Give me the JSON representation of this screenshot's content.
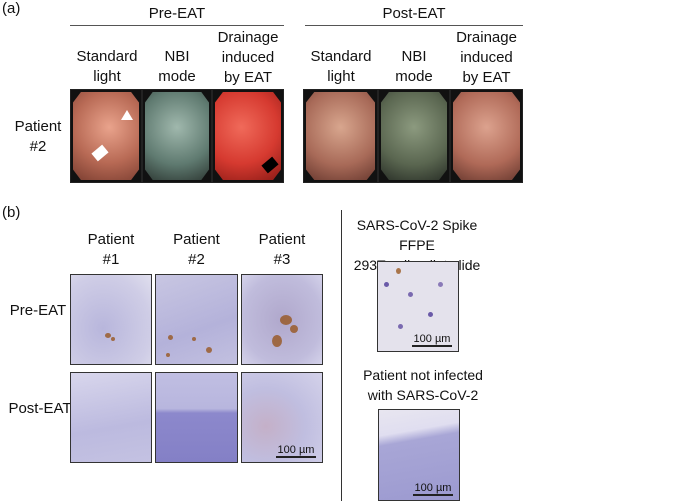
{
  "panel_a": {
    "label": "(a)",
    "group_pre": "Pre-EAT",
    "group_post": "Post-EAT",
    "columns": [
      "Standard light\nmode",
      "NBI\nmode",
      "Drainage\ninduced\nby EAT"
    ],
    "row_label": "Patient\n#2",
    "image_colors": {
      "standard": "#b86a55",
      "nbi": "#5f7a70",
      "drainage": "#d63a30"
    }
  },
  "panel_b": {
    "label": "(b)",
    "columns": [
      "Patient\n#1",
      "Patient\n#2",
      "Patient\n#3"
    ],
    "rows": [
      "Pre-EAT",
      "Post-EAT"
    ],
    "scale_bar": "100 µm",
    "control_positive_title": "SARS-CoV-2 Spike FFPE\n293T cell pellet slide",
    "control_negative_title": "Patient not infected\nwith SARS-CoV-2",
    "stain_colors": {
      "hematoxylin": "#9a9ad0",
      "dab": "#8a4a1a"
    }
  }
}
